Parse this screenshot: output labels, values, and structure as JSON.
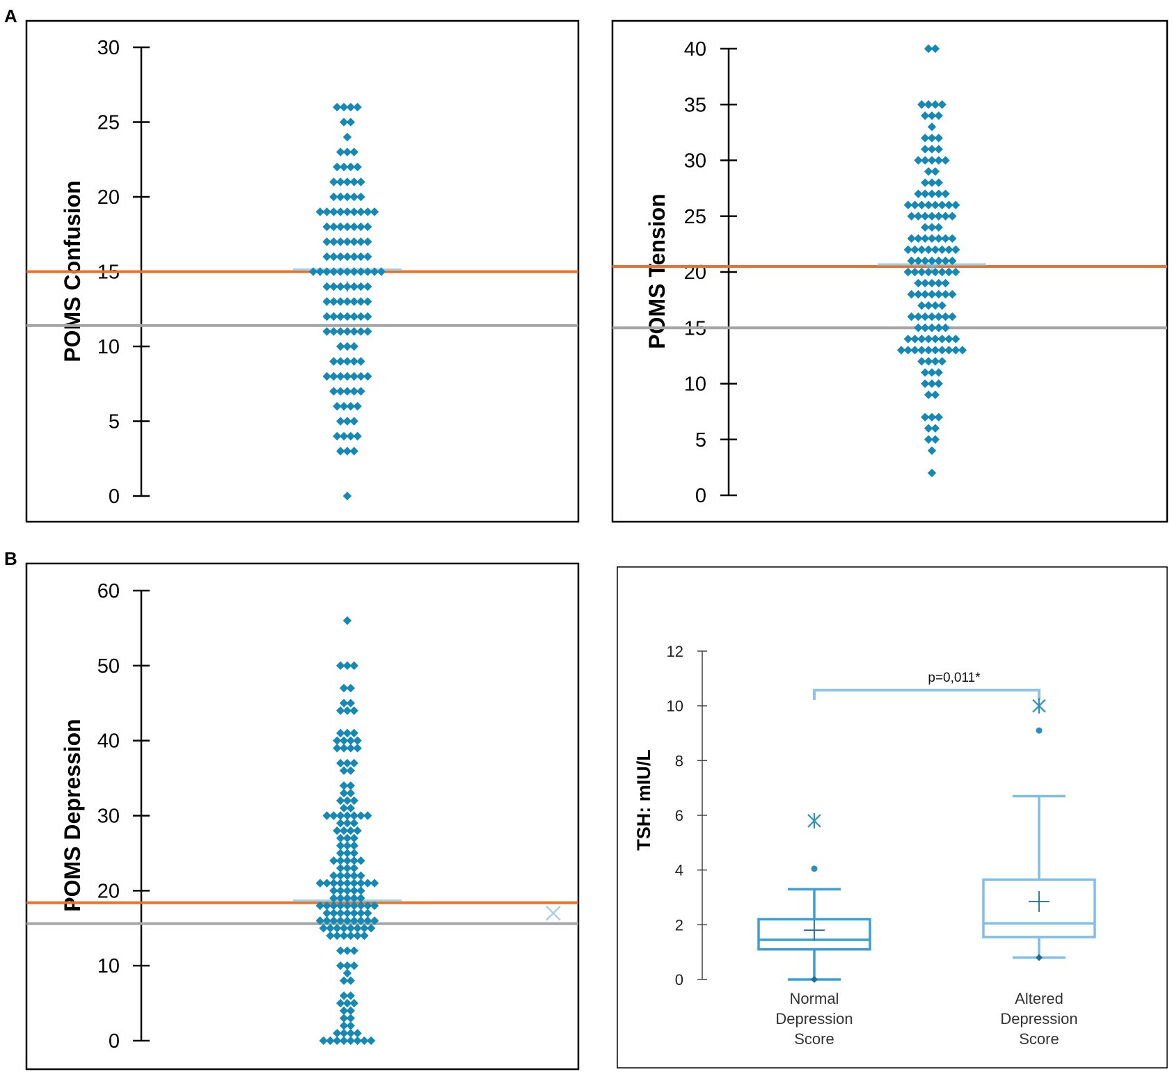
{
  "panel_labels": [
    "A",
    "B"
  ],
  "colors": {
    "points": "#1589b5",
    "mean_line": "#e8722b",
    "reference_line": "#a6a6a6",
    "box_normal": "#3a9fd3",
    "box_altered": "#7fbee6",
    "bracket": "#8fc4e6"
  },
  "chart_data": [
    {
      "id": "confusion",
      "panel": "A",
      "type": "scatter",
      "ylabel": "POMS Confusion",
      "ylim": [
        0,
        30
      ],
      "yticks": [
        0,
        5,
        10,
        15,
        20,
        25,
        30
      ],
      "orange_line": 15.0,
      "gray_line": 11.4,
      "mean_marker": 14.0,
      "counts": {
        "0": 1,
        "3": 3,
        "4": 4,
        "5": 3,
        "6": 4,
        "7": 5,
        "8": 7,
        "9": 5,
        "10": 3,
        "11": 7,
        "12": 7,
        "13": 7,
        "14": 7,
        "15": 11,
        "16": 7,
        "17": 7,
        "18": 7,
        "19": 9,
        "20": 5,
        "21": 5,
        "22": 4,
        "23": 3,
        "24": 1,
        "25": 2,
        "26": 4
      }
    },
    {
      "id": "tension",
      "panel": "A",
      "type": "scatter",
      "ylabel": "POMS Tension",
      "ylim": [
        0,
        40
      ],
      "yticks": [
        0,
        5,
        10,
        15,
        20,
        25,
        30,
        35,
        40
      ],
      "orange_line": 20.5,
      "gray_line": 15.0,
      "mean_marker": 20.5,
      "counts": {
        "2": 1,
        "4": 1,
        "5": 2,
        "6": 2,
        "7": 3,
        "9": 2,
        "10": 3,
        "11": 3,
        "12": 4,
        "13": 10,
        "14": 8,
        "15": 5,
        "16": 7,
        "17": 4,
        "18": 7,
        "19": 5,
        "20": 8,
        "21": 7,
        "22": 8,
        "23": 7,
        "24": 3,
        "25": 7,
        "26": 8,
        "27": 5,
        "28": 3,
        "29": 2,
        "30": 5,
        "31": 3,
        "32": 3,
        "33": 1,
        "34": 3,
        "35": 4,
        "40": 2
      }
    },
    {
      "id": "depression",
      "panel": "B",
      "type": "scatter",
      "ylabel": "POMS Depression",
      "ylim": [
        0,
        60
      ],
      "yticks": [
        0,
        10,
        20,
        30,
        40,
        50,
        60
      ],
      "orange_line": 18.4,
      "gray_line": 15.6,
      "mean_marker": 20.0,
      "light_x_marker": 17.0,
      "counts": {
        "0": 8,
        "1": 4,
        "2": 2,
        "3": 2,
        "4": 2,
        "5": 3,
        "6": 2,
        "8": 2,
        "9": 1,
        "10": 3,
        "12": 3,
        "14": 6,
        "15": 8,
        "16": 9,
        "17": 7,
        "18": 9,
        "19": 5,
        "20": 5,
        "21": 9,
        "22": 5,
        "23": 3,
        "24": 5,
        "25": 3,
        "26": 3,
        "27": 3,
        "28": 4,
        "29": 3,
        "30": 7,
        "31": 2,
        "32": 3,
        "33": 2,
        "34": 2,
        "36": 2,
        "37": 3,
        "39": 4,
        "40": 4,
        "41": 3,
        "44": 3,
        "45": 2,
        "47": 2,
        "50": 3,
        "56": 1
      }
    },
    {
      "id": "tsh",
      "panel": "B",
      "type": "box",
      "ylabel": "TSH: mIU/L",
      "ylim": [
        0,
        12
      ],
      "yticks": [
        0,
        2,
        4,
        6,
        8,
        10,
        12
      ],
      "significance": "p=0,011*",
      "groups": [
        {
          "lines": [
            "Normal",
            "Depression",
            "Score"
          ],
          "whisker_low": 0.0,
          "q1": 1.1,
          "median": 1.45,
          "q3": 2.2,
          "whisker_high": 3.3,
          "mean": 1.8,
          "outlier": 4.05,
          "extreme": 5.8
        },
        {
          "lines": [
            "Altered",
            "Depression",
            "Score"
          ],
          "whisker_low": 0.8,
          "q1": 1.55,
          "median": 2.05,
          "q3": 3.65,
          "whisker_high": 6.7,
          "mean": 2.85,
          "outlier": 9.1,
          "extreme": 10.0
        }
      ]
    }
  ]
}
